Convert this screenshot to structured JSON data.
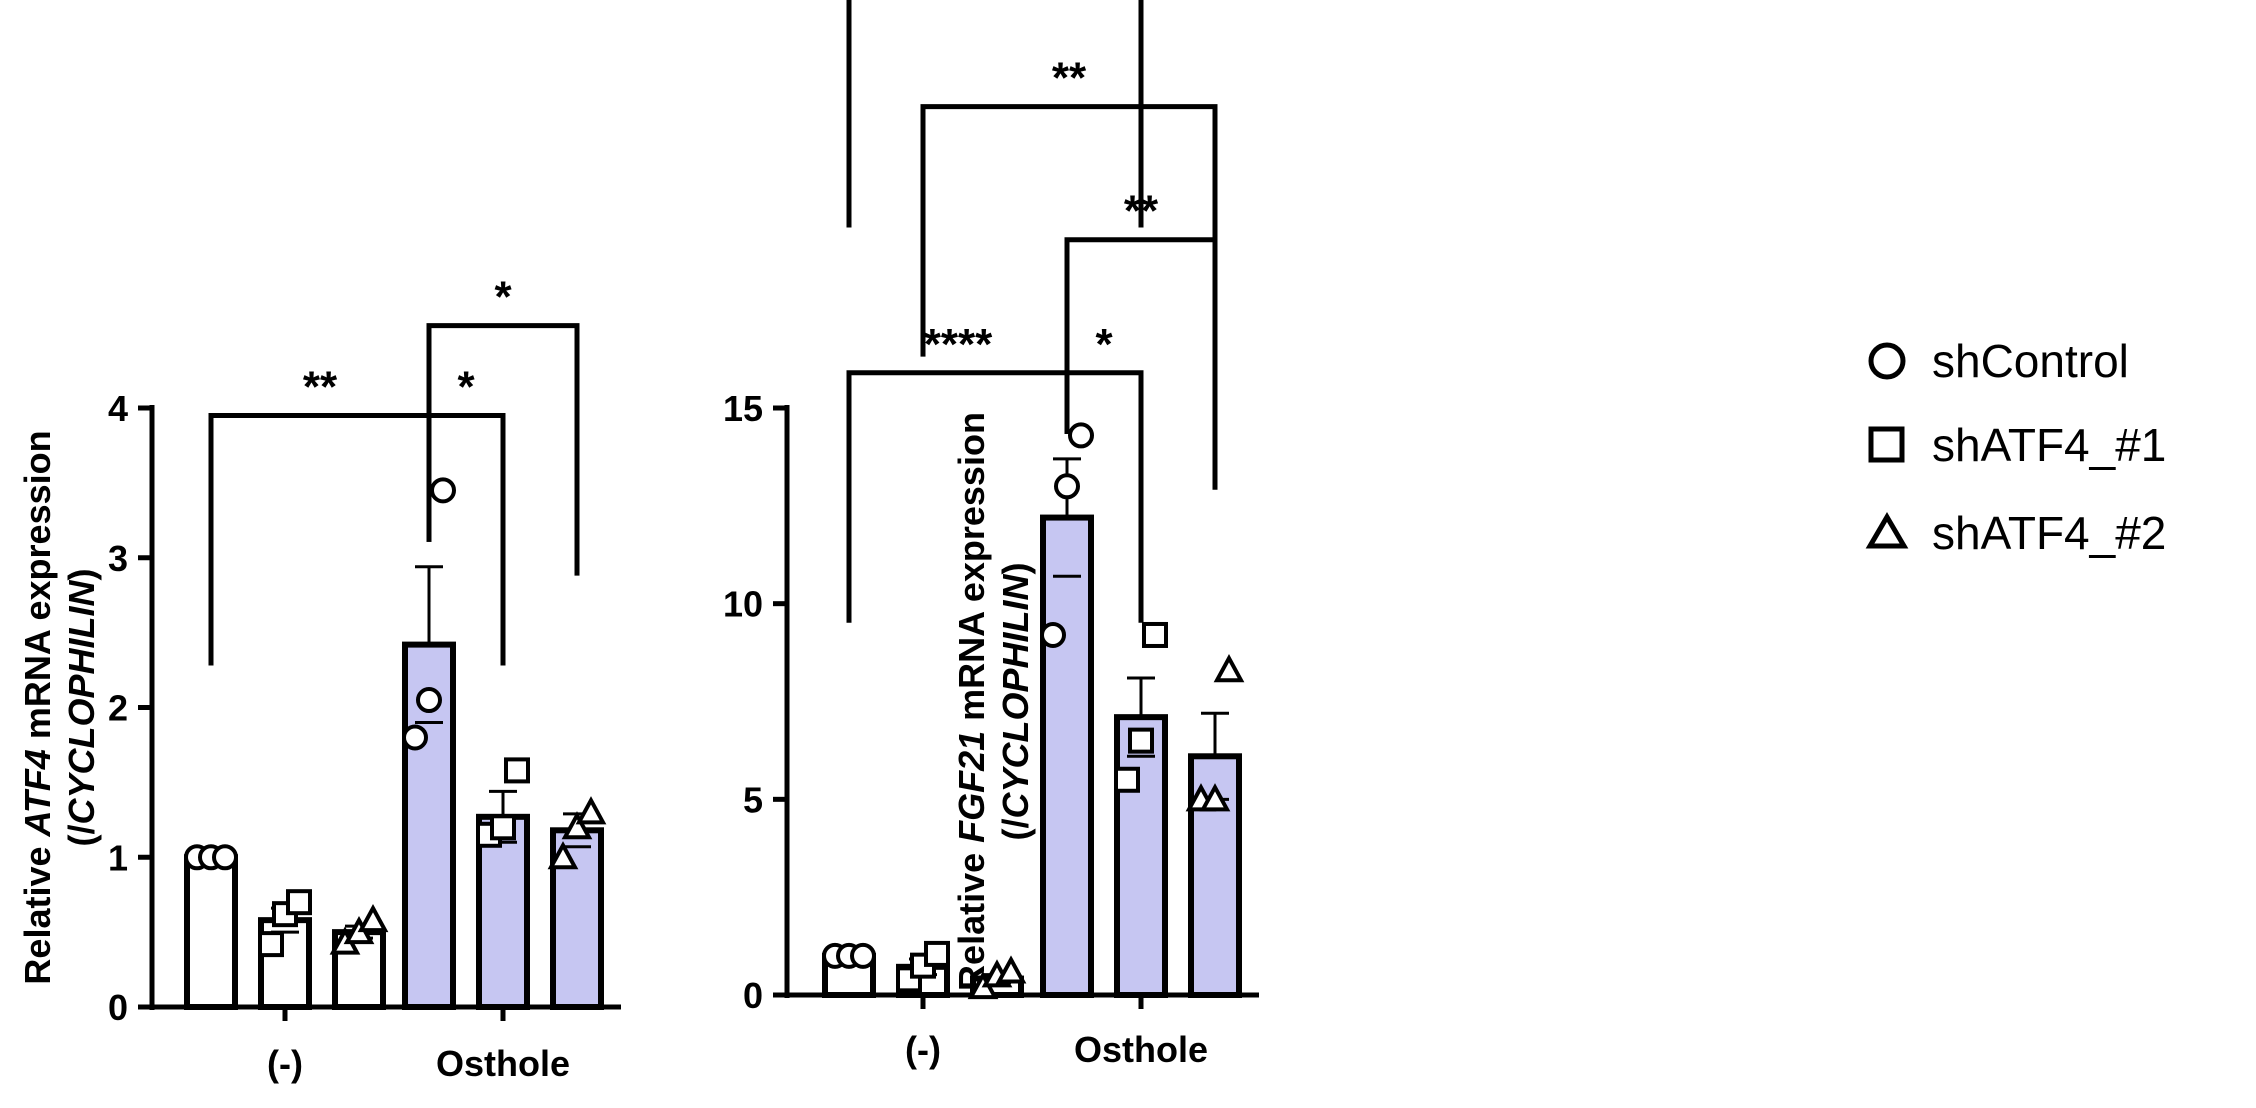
{
  "legend": [
    {
      "label": "shControl",
      "marker": "circle"
    },
    {
      "label": "shATF4_#1",
      "marker": "square"
    },
    {
      "label": "shATF4_#2",
      "marker": "triangle"
    }
  ],
  "colors": {
    "untreated_fill": "#ffffff",
    "osthole_fill": "#c6c6f2",
    "stroke": "#000000"
  },
  "chart_data": [
    {
      "type": "bar",
      "ylabel": {
        "prefix": "Relative ",
        "gene": "ATF4",
        "suffix": " mRNA expression",
        "line2_open": "(/",
        "line2_gene": "CYCLOPHILIN",
        "line2_close": ")"
      },
      "categories": [
        "(-)",
        "Osthole"
      ],
      "ylim": [
        0,
        4
      ],
      "yticks": [
        0,
        1,
        2,
        3,
        4
      ],
      "series": [
        {
          "name": "shControl",
          "marker": "circle",
          "values": [
            1.0,
            2.42
          ],
          "sem": [
            0,
            0.52
          ],
          "points": [
            [
              1.0,
              1.0,
              1.0
            ],
            [
              1.8,
              2.05,
              3.45
            ]
          ]
        },
        {
          "name": "shATF4_#1",
          "marker": "square",
          "values": [
            0.58,
            1.27
          ],
          "sem": [
            0.08,
            0.17
          ],
          "points": [
            [
              0.42,
              0.62,
              0.7
            ],
            [
              1.15,
              1.2,
              1.58
            ]
          ]
        },
        {
          "name": "shATF4_#2",
          "marker": "triangle",
          "values": [
            0.5,
            1.18
          ],
          "sem": [
            0.04,
            0.11
          ],
          "points": [
            [
              0.43,
              0.5,
              0.58
            ],
            [
              1.0,
              1.2,
              1.3
            ]
          ]
        }
      ],
      "significance": [
        {
          "from": [
            0,
            0
          ],
          "to": [
            1,
            0
          ],
          "label": "**",
          "level": 3.95
        },
        {
          "from": [
            1,
            0
          ],
          "to": [
            1,
            1
          ],
          "label": "*",
          "level": 3.95
        },
        {
          "from": [
            1,
            0
          ],
          "to": [
            1,
            2
          ],
          "label": "*",
          "level": 4.55
        }
      ]
    },
    {
      "type": "bar",
      "ylabel": {
        "prefix": "Relative ",
        "gene": "FGF21",
        "suffix": " mRNA expression",
        "line2_open": "(/",
        "line2_gene": "CYCLOPHILIN",
        "line2_close": ")"
      },
      "categories": [
        "(-)",
        "Osthole"
      ],
      "ylim": [
        0,
        15
      ],
      "yticks": [
        0,
        5,
        10,
        15
      ],
      "series": [
        {
          "name": "shControl",
          "marker": "circle",
          "values": [
            1.0,
            12.2
          ],
          "sem": [
            0,
            1.5
          ],
          "points": [
            [
              1.0,
              1.0,
              1.0
            ],
            [
              9.2,
              13.0,
              14.3
            ]
          ]
        },
        {
          "name": "shATF4_#1",
          "marker": "square",
          "values": [
            0.72,
            7.1
          ],
          "sem": [
            0.2,
            1.0
          ],
          "points": [
            [
              0.4,
              0.75,
              1.05
            ],
            [
              5.5,
              6.5,
              9.2
            ]
          ]
        },
        {
          "name": "shATF4_#2",
          "marker": "triangle",
          "values": [
            0.42,
            6.1
          ],
          "sem": [
            0.1,
            1.1
          ],
          "points": [
            [
              0.2,
              0.5,
              0.6
            ],
            [
              5.0,
              5.0,
              8.3
            ]
          ]
        }
      ],
      "significance": [
        {
          "from": [
            0,
            0
          ],
          "to": [
            1,
            0
          ],
          "label": "****",
          "level": 15.9
        },
        {
          "from": [
            1,
            0
          ],
          "to": [
            1,
            1
          ],
          "label": "*",
          "level": 15.9
        },
        {
          "from": [
            1,
            0
          ],
          "to": [
            1,
            2
          ],
          "label": "**",
          "level": 19.3
        },
        {
          "from": [
            0,
            1
          ],
          "to": [
            1,
            2
          ],
          "label": "**",
          "level": 22.7
        },
        {
          "from": [
            0,
            0
          ],
          "to": [
            1,
            1
          ],
          "label": "**",
          "level": 26.0
        }
      ]
    }
  ]
}
